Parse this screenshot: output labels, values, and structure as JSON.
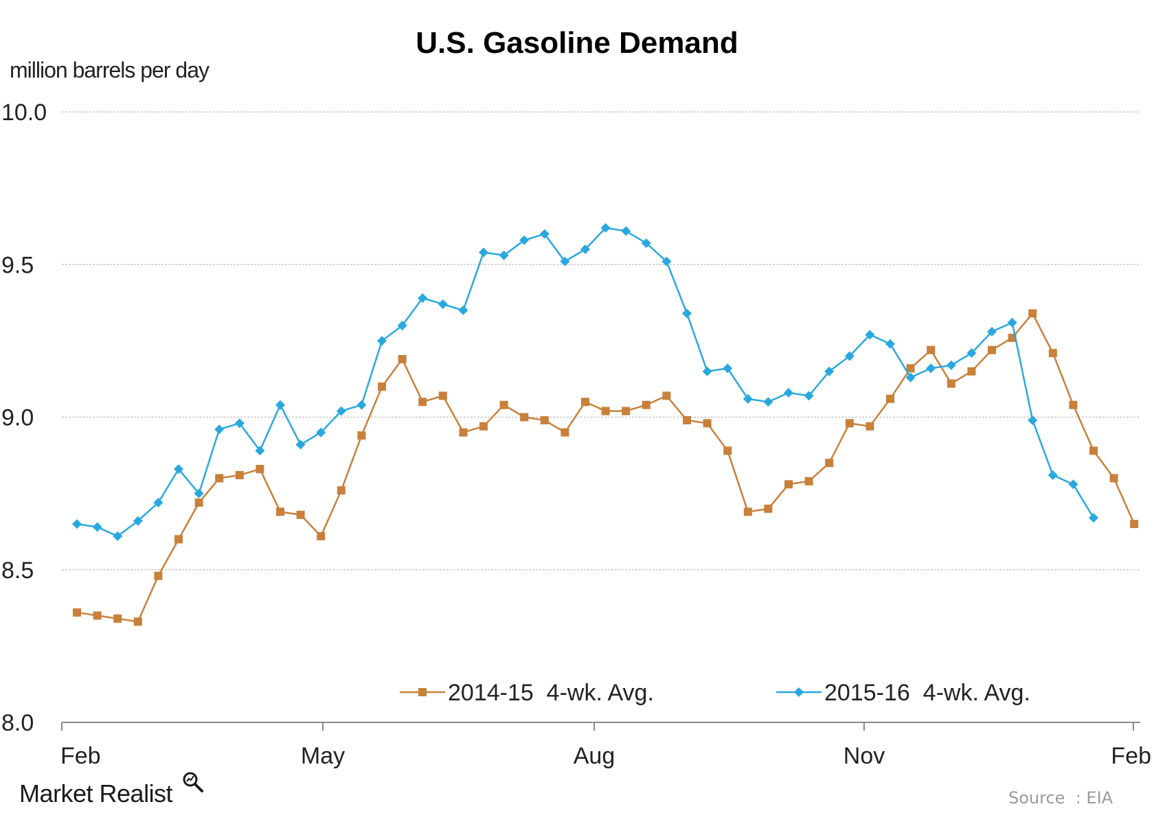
{
  "title": "U.S. Gasoline Demand",
  "footer": {
    "brand": "Market Realist",
    "source": "Source  : EIA"
  },
  "colors": {
    "series_2014": "#c8803a",
    "series_2015": "#29a8df",
    "grid": "#c8c8c8"
  },
  "chart_data": {
    "type": "line",
    "ylabel": "million barrels per day",
    "ylim": [
      8.0,
      10.0
    ],
    "yticks": [
      "10.0",
      "9.5",
      "9.0",
      "8.5",
      "8.0"
    ],
    "ytick_values": [
      10.0,
      9.5,
      9.0,
      8.5,
      8.0
    ],
    "xticks": [
      "Feb",
      "May",
      "Aug",
      "Nov",
      "Feb"
    ],
    "grid": true,
    "legend_position": "bottom",
    "series": [
      {
        "name": "2014-15  4-wk. Avg.",
        "marker": "square",
        "values": [
          8.36,
          8.35,
          8.34,
          8.33,
          8.48,
          8.6,
          8.72,
          8.8,
          8.81,
          8.83,
          8.69,
          8.68,
          8.61,
          8.76,
          8.94,
          9.1,
          9.19,
          9.05,
          9.07,
          8.95,
          8.97,
          9.04,
          9.0,
          8.99,
          8.95,
          9.05,
          9.02,
          9.02,
          9.04,
          9.07,
          8.99,
          8.98,
          8.89,
          8.69,
          8.7,
          8.78,
          8.79,
          8.85,
          8.98,
          8.97,
          9.06,
          9.16,
          9.22,
          9.11,
          9.15,
          9.22,
          9.26,
          9.34,
          9.21,
          9.04,
          8.89,
          8.8,
          8.65
        ]
      },
      {
        "name": "2015-16  4-wk. Avg.",
        "marker": "diamond",
        "values": [
          8.65,
          8.64,
          8.61,
          8.66,
          8.72,
          8.83,
          8.75,
          8.96,
          8.98,
          8.89,
          9.04,
          8.91,
          8.95,
          9.02,
          9.04,
          9.25,
          9.3,
          9.39,
          9.37,
          9.35,
          9.54,
          9.53,
          9.58,
          9.6,
          9.51,
          9.55,
          9.62,
          9.61,
          9.57,
          9.51,
          9.34,
          9.15,
          9.16,
          9.06,
          9.05,
          9.08,
          9.07,
          9.15,
          9.2,
          9.27,
          9.24,
          9.13,
          9.16,
          9.17,
          9.21,
          9.28,
          9.31,
          8.99,
          8.81,
          8.78,
          8.67
        ]
      }
    ]
  }
}
